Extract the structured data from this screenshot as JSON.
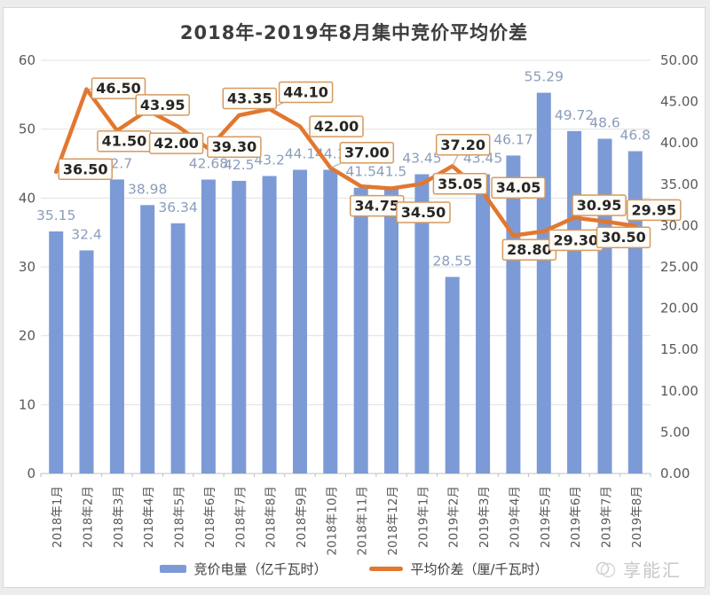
{
  "watermark": {
    "text": "享能汇"
  },
  "chart_data": {
    "type": "bar",
    "combo": "bar+line",
    "title": "2018年-2019年8月集中竞价平均价差",
    "categories": [
      "2018年1月",
      "2018年2月",
      "2018年3月",
      "2018年4月",
      "2018年5月",
      "2018年6月",
      "2018年7月",
      "2018年8月",
      "2018年9月",
      "2018年10月",
      "2018年11月",
      "2018年12月",
      "2019年1月",
      "2019年2月",
      "2019年3月",
      "2019年4月",
      "2019年5月",
      "2019年6月",
      "2019年7月",
      "2019年8月"
    ],
    "series": [
      {
        "name": "竞价电量（亿千瓦时）",
        "type": "bar",
        "axis": "left",
        "color": "#7c9ad6",
        "values": [
          35.15,
          32.4,
          42.7,
          38.98,
          36.34,
          42.68,
          42.5,
          43.2,
          44.1,
          44.1,
          41.5,
          41.5,
          43.45,
          28.55,
          43.45,
          46.17,
          55.29,
          49.72,
          48.6,
          46.8
        ],
        "labels": [
          "35.15",
          "32.4",
          "42.7",
          "38.98",
          "36.34",
          "42.68",
          "42.5",
          "43.2",
          "44.1",
          "44.1",
          "41.5",
          "41.5",
          "43.45",
          "28.55",
          "43.45",
          "46.17",
          "55.29",
          "49.72",
          "48.6",
          "46.8"
        ],
        "label_color": "#8b9dbb"
      },
      {
        "name": "平均价差（厘/千瓦时）",
        "type": "line",
        "axis": "right",
        "color": "#e2772f",
        "values": [
          36.5,
          46.5,
          41.5,
          43.95,
          42.0,
          39.3,
          43.35,
          44.1,
          42.0,
          37.0,
          34.75,
          34.5,
          35.05,
          37.2,
          34.05,
          28.8,
          29.3,
          30.95,
          30.5,
          29.95
        ],
        "labels": [
          "36.50",
          "46.50",
          "41.50",
          "43.95",
          "42.00",
          "39.30",
          "43.35",
          "44.10",
          "42.00",
          "37.00",
          "34.75",
          "34.50",
          "35.05",
          "37.20",
          "34.05",
          "28.80",
          "29.30",
          "30.95",
          "30.50",
          "29.95"
        ],
        "label_color": "#262626",
        "label_box_border": "#d49a62",
        "label_box_fill": "#fffdf8"
      }
    ],
    "left_axis": {
      "min": 0,
      "max": 60,
      "step": 10,
      "tick_labels": [
        "0",
        "10",
        "20",
        "30",
        "40",
        "50",
        "60"
      ]
    },
    "right_axis": {
      "min": 0,
      "max": 50,
      "step": 5,
      "tick_labels": [
        "0.00",
        "5.00",
        "10.00",
        "15.00",
        "20.00",
        "25.00",
        "30.00",
        "35.00",
        "40.00",
        "45.00",
        "50.00"
      ]
    },
    "grid": true,
    "legend_position": "bottom"
  }
}
